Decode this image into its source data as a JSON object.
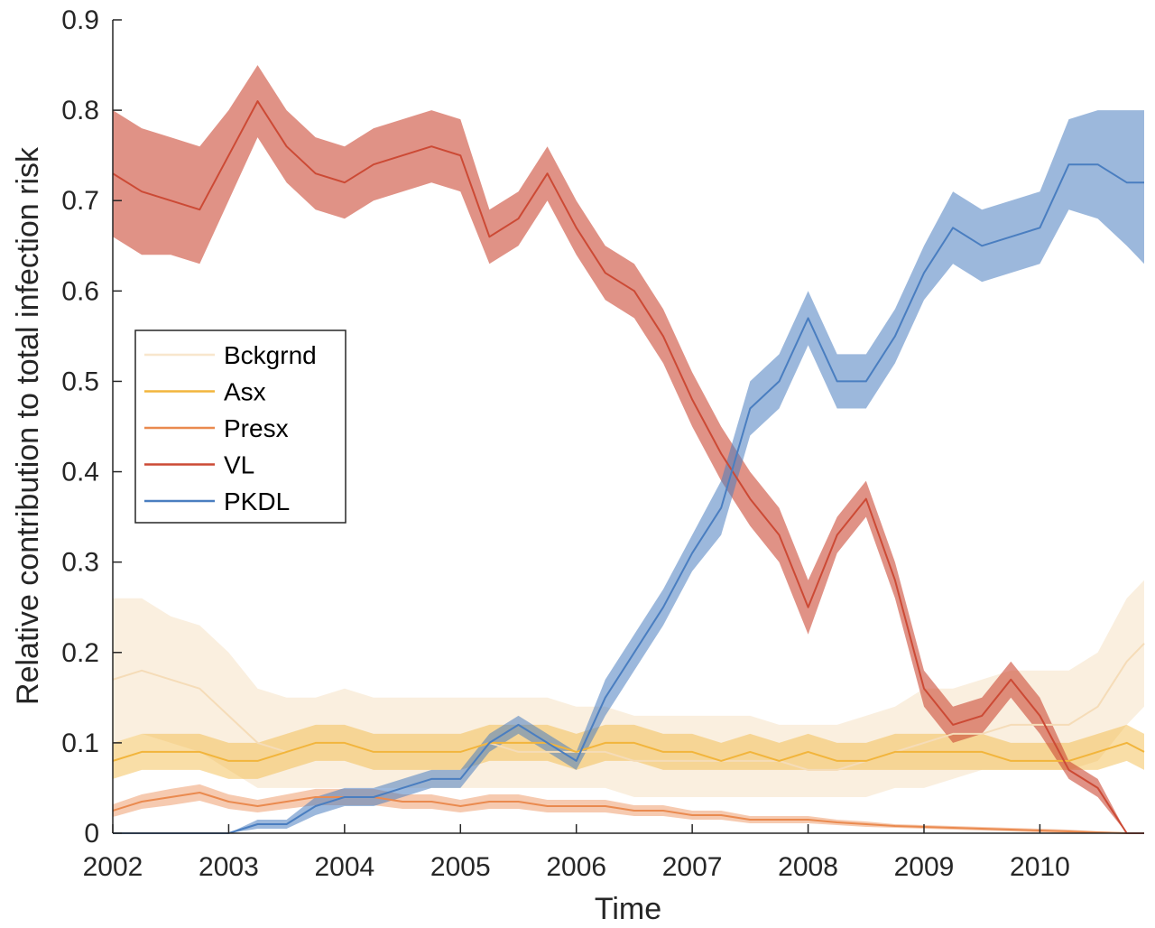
{
  "chart_data": {
    "type": "line",
    "title": "",
    "xlabel": "Time",
    "ylabel": "Relative contribution to total infection risk",
    "xlim": [
      2002,
      2010.9
    ],
    "ylim": [
      0,
      0.9
    ],
    "x_ticks": [
      "2002",
      "2003",
      "2004",
      "2005",
      "2006",
      "2007",
      "2008",
      "2009",
      "2010"
    ],
    "y_ticks": [
      "0",
      "0.1",
      "0.2",
      "0.3",
      "0.4",
      "0.5",
      "0.6",
      "0.7",
      "0.8",
      "0.9"
    ],
    "grid": false,
    "legend_position": "center-left",
    "x": [
      2002.0,
      2002.25,
      2002.5,
      2002.75,
      2003.0,
      2003.25,
      2003.5,
      2003.75,
      2004.0,
      2004.25,
      2004.5,
      2004.75,
      2005.0,
      2005.25,
      2005.5,
      2005.75,
      2006.0,
      2006.25,
      2006.5,
      2006.75,
      2007.0,
      2007.25,
      2007.5,
      2007.75,
      2008.0,
      2008.25,
      2008.5,
      2008.75,
      2009.0,
      2009.25,
      2009.5,
      2009.75,
      2010.0,
      2010.25,
      2010.5,
      2010.75,
      2010.9
    ],
    "series": [
      {
        "name": "Bckgrnd",
        "color": "#f5dcb8",
        "values": [
          0.17,
          0.18,
          0.17,
          0.16,
          0.13,
          0.1,
          0.09,
          0.1,
          0.1,
          0.09,
          0.09,
          0.09,
          0.09,
          0.1,
          0.09,
          0.09,
          0.09,
          0.09,
          0.08,
          0.08,
          0.08,
          0.08,
          0.08,
          0.08,
          0.07,
          0.07,
          0.08,
          0.09,
          0.1,
          0.11,
          0.11,
          0.12,
          0.12,
          0.12,
          0.14,
          0.19,
          0.21
        ],
        "lower": [
          0.1,
          0.11,
          0.1,
          0.09,
          0.07,
          0.05,
          0.05,
          0.05,
          0.05,
          0.05,
          0.05,
          0.05,
          0.05,
          0.05,
          0.05,
          0.05,
          0.05,
          0.05,
          0.04,
          0.04,
          0.04,
          0.04,
          0.04,
          0.04,
          0.04,
          0.04,
          0.04,
          0.05,
          0.05,
          0.06,
          0.07,
          0.07,
          0.07,
          0.07,
          0.08,
          0.12,
          0.14
        ],
        "upper": [
          0.26,
          0.26,
          0.24,
          0.23,
          0.2,
          0.16,
          0.15,
          0.15,
          0.16,
          0.15,
          0.15,
          0.15,
          0.15,
          0.15,
          0.15,
          0.15,
          0.14,
          0.14,
          0.13,
          0.13,
          0.13,
          0.13,
          0.13,
          0.12,
          0.12,
          0.12,
          0.13,
          0.14,
          0.16,
          0.16,
          0.17,
          0.18,
          0.18,
          0.18,
          0.2,
          0.26,
          0.28
        ]
      },
      {
        "name": "Asx",
        "color": "#f2b53c",
        "values": [
          0.08,
          0.09,
          0.09,
          0.09,
          0.08,
          0.08,
          0.09,
          0.1,
          0.1,
          0.09,
          0.09,
          0.09,
          0.09,
          0.1,
          0.1,
          0.1,
          0.09,
          0.1,
          0.1,
          0.09,
          0.09,
          0.08,
          0.09,
          0.08,
          0.09,
          0.08,
          0.08,
          0.09,
          0.09,
          0.09,
          0.09,
          0.08,
          0.08,
          0.08,
          0.09,
          0.1,
          0.09
        ],
        "lower": [
          0.06,
          0.07,
          0.07,
          0.07,
          0.06,
          0.06,
          0.07,
          0.08,
          0.08,
          0.07,
          0.07,
          0.07,
          0.07,
          0.08,
          0.08,
          0.08,
          0.07,
          0.08,
          0.08,
          0.07,
          0.07,
          0.07,
          0.07,
          0.07,
          0.07,
          0.07,
          0.07,
          0.07,
          0.07,
          0.07,
          0.07,
          0.07,
          0.07,
          0.07,
          0.07,
          0.08,
          0.07
        ],
        "upper": [
          0.1,
          0.11,
          0.11,
          0.11,
          0.1,
          0.1,
          0.11,
          0.12,
          0.12,
          0.11,
          0.11,
          0.11,
          0.11,
          0.12,
          0.12,
          0.12,
          0.11,
          0.12,
          0.12,
          0.11,
          0.11,
          0.1,
          0.11,
          0.1,
          0.11,
          0.1,
          0.1,
          0.11,
          0.11,
          0.11,
          0.11,
          0.1,
          0.1,
          0.1,
          0.11,
          0.12,
          0.11
        ]
      },
      {
        "name": "Presx",
        "color": "#ea8a4f",
        "values": [
          0.025,
          0.035,
          0.04,
          0.045,
          0.035,
          0.03,
          0.035,
          0.04,
          0.04,
          0.04,
          0.035,
          0.035,
          0.03,
          0.035,
          0.035,
          0.03,
          0.03,
          0.03,
          0.025,
          0.025,
          0.02,
          0.02,
          0.015,
          0.015,
          0.015,
          0.012,
          0.01,
          0.008,
          0.007,
          0.006,
          0.005,
          0.004,
          0.003,
          0.002,
          0.001,
          0.0,
          0.0
        ],
        "lower": [
          0.018,
          0.027,
          0.031,
          0.036,
          0.027,
          0.023,
          0.027,
          0.031,
          0.031,
          0.031,
          0.027,
          0.027,
          0.023,
          0.027,
          0.027,
          0.023,
          0.023,
          0.023,
          0.019,
          0.019,
          0.015,
          0.015,
          0.011,
          0.011,
          0.011,
          0.009,
          0.007,
          0.006,
          0.005,
          0.004,
          0.003,
          0.002,
          0.001,
          0.0,
          0.0,
          0.0,
          0.0
        ],
        "upper": [
          0.032,
          0.043,
          0.049,
          0.054,
          0.043,
          0.037,
          0.043,
          0.049,
          0.049,
          0.049,
          0.043,
          0.043,
          0.037,
          0.043,
          0.043,
          0.037,
          0.037,
          0.037,
          0.031,
          0.031,
          0.025,
          0.025,
          0.019,
          0.019,
          0.019,
          0.015,
          0.013,
          0.01,
          0.009,
          0.008,
          0.007,
          0.006,
          0.005,
          0.004,
          0.002,
          0.001,
          0.001
        ]
      },
      {
        "name": "VL",
        "color": "#cc4a35",
        "values": [
          0.73,
          0.71,
          0.7,
          0.69,
          0.75,
          0.81,
          0.76,
          0.73,
          0.72,
          0.74,
          0.75,
          0.76,
          0.75,
          0.66,
          0.68,
          0.73,
          0.67,
          0.62,
          0.6,
          0.55,
          0.48,
          0.42,
          0.37,
          0.33,
          0.25,
          0.33,
          0.37,
          0.28,
          0.16,
          0.12,
          0.13,
          0.17,
          0.13,
          0.07,
          0.05,
          0.0,
          0.0
        ],
        "lower": [
          0.66,
          0.64,
          0.64,
          0.63,
          0.7,
          0.77,
          0.72,
          0.69,
          0.68,
          0.7,
          0.71,
          0.72,
          0.71,
          0.63,
          0.65,
          0.7,
          0.64,
          0.59,
          0.57,
          0.52,
          0.45,
          0.39,
          0.34,
          0.3,
          0.22,
          0.31,
          0.35,
          0.26,
          0.14,
          0.1,
          0.11,
          0.15,
          0.11,
          0.06,
          0.04,
          0.0,
          0.0
        ],
        "upper": [
          0.8,
          0.78,
          0.77,
          0.76,
          0.8,
          0.85,
          0.8,
          0.77,
          0.76,
          0.78,
          0.79,
          0.8,
          0.79,
          0.69,
          0.71,
          0.76,
          0.7,
          0.65,
          0.63,
          0.58,
          0.51,
          0.45,
          0.4,
          0.36,
          0.28,
          0.35,
          0.39,
          0.3,
          0.18,
          0.14,
          0.15,
          0.19,
          0.15,
          0.08,
          0.06,
          0.0,
          0.0
        ]
      },
      {
        "name": "PKDL",
        "color": "#4a7ec0",
        "values": [
          0.0,
          0.0,
          0.0,
          0.0,
          0.0,
          0.01,
          0.01,
          0.03,
          0.04,
          0.04,
          0.05,
          0.06,
          0.06,
          0.1,
          0.12,
          0.1,
          0.08,
          0.15,
          0.2,
          0.25,
          0.31,
          0.36,
          0.47,
          0.5,
          0.57,
          0.5,
          0.5,
          0.55,
          0.62,
          0.67,
          0.65,
          0.66,
          0.67,
          0.74,
          0.74,
          0.72,
          0.72
        ],
        "lower": [
          0.0,
          0.0,
          0.0,
          0.0,
          0.0,
          0.005,
          0.005,
          0.02,
          0.03,
          0.03,
          0.04,
          0.05,
          0.05,
          0.09,
          0.11,
          0.09,
          0.07,
          0.13,
          0.18,
          0.23,
          0.29,
          0.33,
          0.44,
          0.47,
          0.54,
          0.47,
          0.47,
          0.52,
          0.59,
          0.63,
          0.61,
          0.62,
          0.63,
          0.69,
          0.68,
          0.65,
          0.63
        ],
        "upper": [
          0.0,
          0.0,
          0.0,
          0.0,
          0.0,
          0.015,
          0.015,
          0.04,
          0.05,
          0.05,
          0.06,
          0.07,
          0.07,
          0.11,
          0.13,
          0.11,
          0.09,
          0.17,
          0.22,
          0.27,
          0.33,
          0.39,
          0.5,
          0.53,
          0.6,
          0.53,
          0.53,
          0.58,
          0.65,
          0.71,
          0.69,
          0.7,
          0.71,
          0.79,
          0.8,
          0.8,
          0.8
        ]
      }
    ]
  }
}
